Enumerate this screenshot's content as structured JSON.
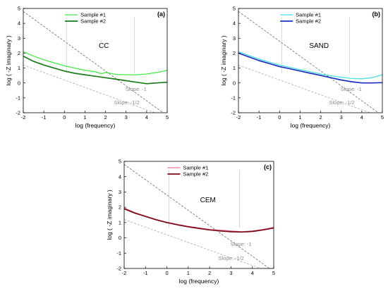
{
  "chart_data": [
    {
      "type": "line",
      "panel_label": "(a)",
      "title": "CC",
      "xlabel": "log (frequency)",
      "ylabel": "log ( -Z imaginary )",
      "xlim": [
        -2,
        5
      ],
      "ylim": [
        -2,
        5
      ],
      "xticks": [
        -2,
        -1,
        0,
        1,
        2,
        3,
        4,
        5
      ],
      "yticks": [
        -2,
        -1,
        0,
        1,
        2,
        3,
        4,
        5
      ],
      "legend_position": "top-left",
      "annotations": [
        "Slope: -1",
        "Slope: -1/2"
      ],
      "vertical_markers_x": [
        0.1,
        3.4
      ],
      "reference_lines": [
        {
          "name": "Slope: -1",
          "style": "dashed",
          "x": [
            -2,
            5
          ],
          "y": [
            4.8,
            -2.2
          ]
        },
        {
          "name": "Slope: -1/2",
          "style": "dashed-light",
          "x": [
            -2,
            5
          ],
          "y": [
            1.2,
            -2.3
          ]
        }
      ],
      "series": [
        {
          "name": "Sample #1",
          "color": "#47e847",
          "x": [
            -2,
            -1.5,
            -1,
            -0.5,
            0,
            0.5,
            1,
            1.5,
            1.8,
            2,
            2.5,
            3,
            3.5,
            4,
            4.5,
            5
          ],
          "y": [
            2.1,
            1.8,
            1.55,
            1.35,
            1.15,
            1.0,
            0.85,
            0.75,
            0.62,
            0.7,
            0.58,
            0.55,
            0.55,
            0.6,
            0.7,
            0.85
          ]
        },
        {
          "name": "Sample #2",
          "color": "#1a7a1a",
          "x": [
            -2,
            -1.5,
            -1,
            -0.5,
            0,
            0.5,
            1,
            1.5,
            2,
            2.5,
            3,
            3.5,
            4,
            4.5,
            5
          ],
          "y": [
            1.8,
            1.45,
            1.2,
            1.0,
            0.8,
            0.65,
            0.55,
            0.45,
            0.35,
            0.25,
            0.15,
            0.05,
            -0.05,
            0.0,
            0.05
          ]
        }
      ]
    },
    {
      "type": "line",
      "panel_label": "(b)",
      "title": "SAND",
      "xlabel": "log (frequency)",
      "ylabel": "log ( -Z imaginary )",
      "xlim": [
        -2,
        5
      ],
      "ylim": [
        -2,
        5
      ],
      "xticks": [
        -2,
        -1,
        0,
        1,
        2,
        3,
        4,
        5
      ],
      "yticks": [
        -2,
        -1,
        0,
        1,
        2,
        3,
        4,
        5
      ],
      "legend_position": "top-left",
      "annotations": [
        "Slope: -1",
        "Slope: -1/2"
      ],
      "vertical_markers_x": [
        0.1,
        3.4
      ],
      "reference_lines": [
        {
          "name": "Slope: -1",
          "style": "dashed",
          "x": [
            -2,
            5
          ],
          "y": [
            4.8,
            -2.2
          ]
        },
        {
          "name": "Slope: -1/2",
          "style": "dashed-light",
          "x": [
            -2,
            5
          ],
          "y": [
            1.2,
            -2.3
          ]
        }
      ],
      "series": [
        {
          "name": "Sample #1",
          "color": "#4de0e0",
          "x": [
            -2,
            -1.5,
            -1,
            -0.5,
            0,
            0.5,
            1,
            1.5,
            2,
            2.5,
            3,
            3.5,
            4,
            4.5,
            5
          ],
          "y": [
            2.1,
            1.85,
            1.6,
            1.4,
            1.2,
            1.05,
            0.9,
            0.75,
            0.6,
            0.48,
            0.38,
            0.3,
            0.28,
            0.35,
            0.55
          ]
        },
        {
          "name": "Sample #2",
          "color": "#1f2fc4",
          "x": [
            -2,
            -1.5,
            -1,
            -0.5,
            0,
            0.5,
            1,
            1.5,
            2,
            2.5,
            3,
            3.5,
            4,
            4.5,
            5
          ],
          "y": [
            2.0,
            1.75,
            1.5,
            1.3,
            1.1,
            0.95,
            0.8,
            0.65,
            0.5,
            0.35,
            0.2,
            0.08,
            0.0,
            0.0,
            0.02
          ]
        }
      ]
    },
    {
      "type": "line",
      "panel_label": "(c)",
      "title": "CEM",
      "xlabel": "log (frequency)",
      "ylabel": "log ( -Z imaginary )",
      "xlim": [
        -2,
        5
      ],
      "ylim": [
        -2,
        5
      ],
      "xticks": [
        -2,
        -1,
        0,
        1,
        2,
        3,
        4,
        5
      ],
      "yticks": [
        -2,
        -1,
        0,
        1,
        2,
        3,
        4,
        5
      ],
      "legend_position": "top-left",
      "annotations": [
        "Slope: -1",
        "Slope: -1/2"
      ],
      "vertical_markers_x": [
        0.1,
        3.4
      ],
      "reference_lines": [
        {
          "name": "Slope: -1",
          "style": "dashed",
          "x": [
            -2,
            5
          ],
          "y": [
            4.8,
            -2.2
          ]
        },
        {
          "name": "Slope: -1/2",
          "style": "dashed-light",
          "x": [
            -2,
            5
          ],
          "y": [
            1.2,
            -2.3
          ]
        }
      ],
      "series": [
        {
          "name": "Sample #1",
          "color": "#e87a9e",
          "x": [
            -2,
            -1.5,
            -1,
            -0.5,
            0,
            0.5,
            1,
            1.5,
            2,
            2.5,
            3,
            3.5,
            4,
            4.5,
            5
          ],
          "y": [
            1.95,
            1.65,
            1.42,
            1.2,
            1.02,
            0.88,
            0.75,
            0.65,
            0.55,
            0.5,
            0.45,
            0.4,
            0.45,
            0.55,
            0.68
          ]
        },
        {
          "name": "Sample #2",
          "color": "#7a0a1a",
          "x": [
            -2,
            -1.5,
            -1,
            -0.5,
            0,
            0.5,
            1,
            1.5,
            2,
            2.5,
            3,
            3.5,
            4,
            4.5,
            5
          ],
          "y": [
            1.9,
            1.62,
            1.4,
            1.18,
            1.0,
            0.85,
            0.72,
            0.62,
            0.52,
            0.45,
            0.4,
            0.38,
            0.42,
            0.52,
            0.65
          ]
        }
      ]
    }
  ]
}
